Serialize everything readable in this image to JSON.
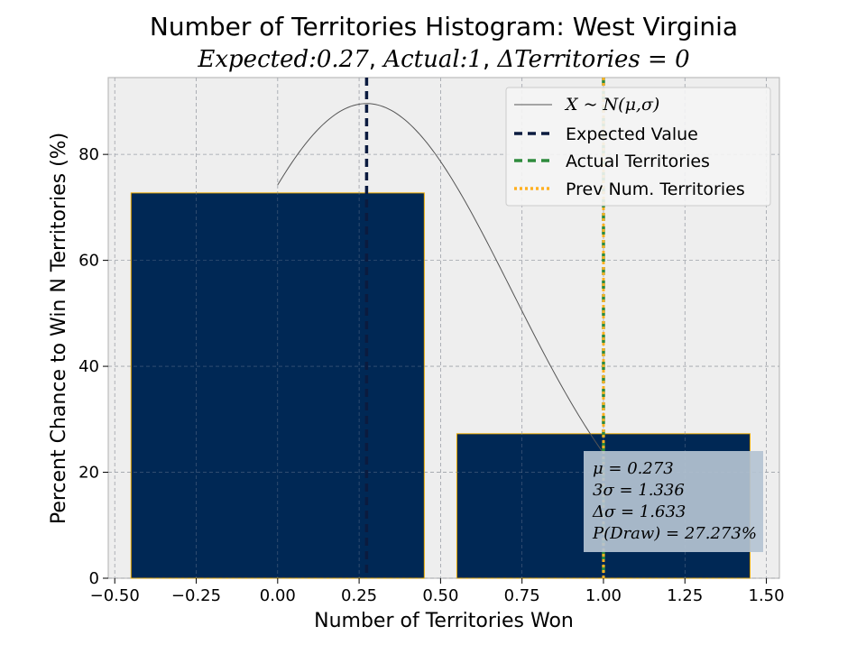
{
  "chart_data": {
    "type": "bar",
    "title": "Number of Territories Histogram: West Virginia",
    "subtitle": {
      "expected_label": "Expected",
      "expected_value": "0.27",
      "actual_label": "Actual",
      "actual_value": "1",
      "delta_label": "ΔTerritories",
      "delta_value": "0"
    },
    "xlabel": "Number of Territories Won",
    "ylabel": "Percent Chance to Win N Territories (%)",
    "xlim": [
      -0.52,
      1.54
    ],
    "ylim": [
      0,
      94.5
    ],
    "xticks": [
      -0.5,
      -0.25,
      0.0,
      0.25,
      0.5,
      0.75,
      1.0,
      1.25,
      1.5
    ],
    "xtick_labels": [
      "−0.50",
      "−0.25",
      "0.00",
      "0.25",
      "0.50",
      "0.75",
      "1.00",
      "1.25",
      "1.50"
    ],
    "yticks": [
      0,
      20,
      40,
      60,
      80
    ],
    "ytick_labels": [
      "0",
      "20",
      "40",
      "60",
      "80"
    ],
    "grid": true,
    "bars": [
      {
        "x": 0,
        "width": 0.9,
        "value": 72.727
      },
      {
        "x": 1,
        "width": 0.9,
        "value": 27.273
      }
    ],
    "normal_curve": {
      "mu": 0.273,
      "sigma": 0.445,
      "scale": 89.6,
      "x_start": 0.0,
      "x_end": 1.0
    },
    "vlines": {
      "expected": 0.273,
      "actual": 1.0,
      "previous": 1.0
    },
    "legend": {
      "placement": "top-right",
      "entries": [
        {
          "label": "X ~ N(μ,σ)",
          "style": "solid-thin"
        },
        {
          "label": "Expected Value",
          "style": "dashed-navy"
        },
        {
          "label": "Actual Territories",
          "style": "dashed-green"
        },
        {
          "label": "Prev Num. Territories",
          "style": "dotted-orange"
        }
      ]
    },
    "stats_box": {
      "lines": [
        "μ = 0.273",
        "3σ = 1.336",
        "Δσ = 1.633",
        "P(Draw) = 27.273%"
      ]
    },
    "colors": {
      "bar_fill": "#002855",
      "bar_edge": "#EAAA00",
      "expected_line": "#0b1b3f",
      "actual_line": "#2e8b3d",
      "prev_line": "#ffb020",
      "curve": "#555555",
      "plot_bg": "#eeeeee",
      "grid": "#b0b0b0",
      "stats_box_bg": "#b4c3d2"
    }
  }
}
